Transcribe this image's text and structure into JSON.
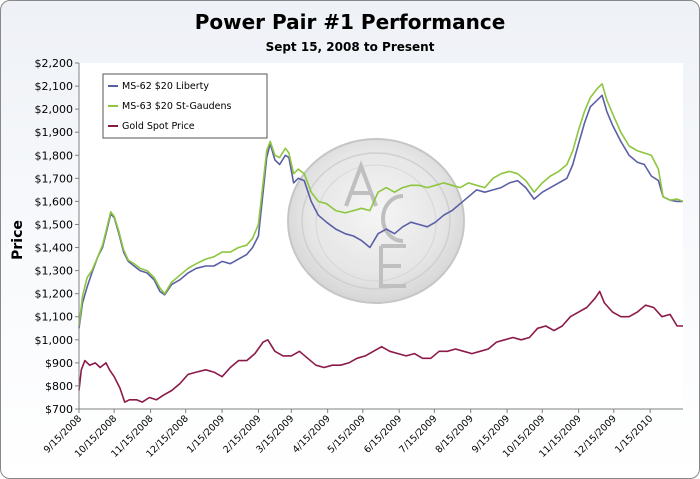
{
  "chart_data": {
    "type": "line",
    "title": "Power Pair #1 Performance",
    "subtitle": "Sept 15, 2008 to Present",
    "ylabel": "Price",
    "xlabel": "",
    "ylim": [
      700,
      2200
    ],
    "y_ticks": [
      "$700",
      "$800",
      "$900",
      "$1,000",
      "$1,100",
      "$1,200",
      "$1,300",
      "$1,400",
      "$1,500",
      "$1,600",
      "$1,700",
      "$1,800",
      "$1,900",
      "$2,000",
      "$2,100",
      "$2,200"
    ],
    "x_ticks": [
      "9/15/2008",
      "10/15/2008",
      "11/15/2008",
      "12/15/2008",
      "1/15/2009",
      "2/15/2009",
      "3/15/2009",
      "4/15/2009",
      "5/15/2009",
      "6/15/2009",
      "7/15/2009",
      "8/15/2009",
      "9/15/2009",
      "10/15/2009",
      "11/15/2009",
      "12/15/2009",
      "1/15/2010"
    ],
    "x_range": [
      "2008-09-15",
      "2010-02-12"
    ],
    "grid": false,
    "legend_position": "top-left",
    "watermark": "ACE coin emblem",
    "series": [
      {
        "name": "MS-62 $20 Liberty",
        "color": "#5b5fa6",
        "points": [
          [
            "2008-09-15",
            1050
          ],
          [
            "2008-09-18",
            1160
          ],
          [
            "2008-09-22",
            1230
          ],
          [
            "2008-09-26",
            1290
          ],
          [
            "2008-10-01",
            1360
          ],
          [
            "2008-10-05",
            1400
          ],
          [
            "2008-10-09",
            1480
          ],
          [
            "2008-10-12",
            1545
          ],
          [
            "2008-10-15",
            1530
          ],
          [
            "2008-10-19",
            1460
          ],
          [
            "2008-10-23",
            1380
          ],
          [
            "2008-10-27",
            1340
          ],
          [
            "2008-11-01",
            1320
          ],
          [
            "2008-11-06",
            1300
          ],
          [
            "2008-11-12",
            1290
          ],
          [
            "2008-11-18",
            1260
          ],
          [
            "2008-11-23",
            1210
          ],
          [
            "2008-11-27",
            1195
          ],
          [
            "2008-12-03",
            1240
          ],
          [
            "2008-12-10",
            1260
          ],
          [
            "2008-12-17",
            1290
          ],
          [
            "2008-12-24",
            1310
          ],
          [
            "2009-01-01",
            1320
          ],
          [
            "2009-01-08",
            1320
          ],
          [
            "2009-01-15",
            1340
          ],
          [
            "2009-01-22",
            1330
          ],
          [
            "2009-01-29",
            1350
          ],
          [
            "2009-02-05",
            1370
          ],
          [
            "2009-02-10",
            1400
          ],
          [
            "2009-02-15",
            1450
          ],
          [
            "2009-02-19",
            1640
          ],
          [
            "2009-02-22",
            1790
          ],
          [
            "2009-02-25",
            1850
          ],
          [
            "2009-03-01",
            1780
          ],
          [
            "2009-03-05",
            1760
          ],
          [
            "2009-03-10",
            1800
          ],
          [
            "2009-03-13",
            1790
          ],
          [
            "2009-03-17",
            1680
          ],
          [
            "2009-03-21",
            1700
          ],
          [
            "2009-03-26",
            1690
          ],
          [
            "2009-04-01",
            1600
          ],
          [
            "2009-04-07",
            1540
          ],
          [
            "2009-04-14",
            1510
          ],
          [
            "2009-04-22",
            1480
          ],
          [
            "2009-04-30",
            1460
          ],
          [
            "2009-05-07",
            1450
          ],
          [
            "2009-05-14",
            1430
          ],
          [
            "2009-05-21",
            1400
          ],
          [
            "2009-05-28",
            1460
          ],
          [
            "2009-06-04",
            1480
          ],
          [
            "2009-06-11",
            1460
          ],
          [
            "2009-06-18",
            1490
          ],
          [
            "2009-06-25",
            1510
          ],
          [
            "2009-07-02",
            1500
          ],
          [
            "2009-07-09",
            1490
          ],
          [
            "2009-07-16",
            1510
          ],
          [
            "2009-07-23",
            1540
          ],
          [
            "2009-07-30",
            1560
          ],
          [
            "2009-08-06",
            1590
          ],
          [
            "2009-08-13",
            1620
          ],
          [
            "2009-08-20",
            1650
          ],
          [
            "2009-08-27",
            1640
          ],
          [
            "2009-09-03",
            1650
          ],
          [
            "2009-09-10",
            1660
          ],
          [
            "2009-09-17",
            1680
          ],
          [
            "2009-09-24",
            1690
          ],
          [
            "2009-10-01",
            1660
          ],
          [
            "2009-10-08",
            1610
          ],
          [
            "2009-10-15",
            1640
          ],
          [
            "2009-10-22",
            1660
          ],
          [
            "2009-10-29",
            1680
          ],
          [
            "2009-11-05",
            1700
          ],
          [
            "2009-11-10",
            1760
          ],
          [
            "2009-11-15",
            1850
          ],
          [
            "2009-11-20",
            1940
          ],
          [
            "2009-11-25",
            2010
          ],
          [
            "2009-12-01",
            2040
          ],
          [
            "2009-12-05",
            2060
          ],
          [
            "2009-12-09",
            1990
          ],
          [
            "2009-12-14",
            1930
          ],
          [
            "2009-12-21",
            1860
          ],
          [
            "2009-12-28",
            1800
          ],
          [
            "2010-01-04",
            1770
          ],
          [
            "2010-01-10",
            1760
          ],
          [
            "2010-01-16",
            1710
          ],
          [
            "2010-01-22",
            1690
          ],
          [
            "2010-01-26",
            1620
          ],
          [
            "2010-02-01",
            1605
          ],
          [
            "2010-02-07",
            1600
          ],
          [
            "2010-02-12",
            1600
          ]
        ]
      },
      {
        "name": "MS-63 $20 St-Gaudens",
        "color": "#8dc63f",
        "points": [
          [
            "2008-09-15",
            1060
          ],
          [
            "2008-09-18",
            1190
          ],
          [
            "2008-09-22",
            1270
          ],
          [
            "2008-09-26",
            1300
          ],
          [
            "2008-10-01",
            1360
          ],
          [
            "2008-10-05",
            1410
          ],
          [
            "2008-10-09",
            1490
          ],
          [
            "2008-10-12",
            1555
          ],
          [
            "2008-10-15",
            1535
          ],
          [
            "2008-10-19",
            1470
          ],
          [
            "2008-10-23",
            1390
          ],
          [
            "2008-10-27",
            1345
          ],
          [
            "2008-11-01",
            1330
          ],
          [
            "2008-11-06",
            1310
          ],
          [
            "2008-11-12",
            1300
          ],
          [
            "2008-11-18",
            1270
          ],
          [
            "2008-11-23",
            1225
          ],
          [
            "2008-11-27",
            1200
          ],
          [
            "2008-12-03",
            1250
          ],
          [
            "2008-12-10",
            1280
          ],
          [
            "2008-12-17",
            1310
          ],
          [
            "2008-12-24",
            1330
          ],
          [
            "2009-01-01",
            1350
          ],
          [
            "2009-01-08",
            1360
          ],
          [
            "2009-01-15",
            1380
          ],
          [
            "2009-01-22",
            1380
          ],
          [
            "2009-01-29",
            1400
          ],
          [
            "2009-02-05",
            1410
          ],
          [
            "2009-02-10",
            1440
          ],
          [
            "2009-02-15",
            1500
          ],
          [
            "2009-02-19",
            1680
          ],
          [
            "2009-02-22",
            1820
          ],
          [
            "2009-02-25",
            1860
          ],
          [
            "2009-03-01",
            1800
          ],
          [
            "2009-03-05",
            1790
          ],
          [
            "2009-03-10",
            1830
          ],
          [
            "2009-03-13",
            1810
          ],
          [
            "2009-03-17",
            1720
          ],
          [
            "2009-03-21",
            1740
          ],
          [
            "2009-03-26",
            1720
          ],
          [
            "2009-04-01",
            1640
          ],
          [
            "2009-04-07",
            1600
          ],
          [
            "2009-04-14",
            1590
          ],
          [
            "2009-04-22",
            1560
          ],
          [
            "2009-04-30",
            1550
          ],
          [
            "2009-05-07",
            1560
          ],
          [
            "2009-05-14",
            1570
          ],
          [
            "2009-05-21",
            1560
          ],
          [
            "2009-05-28",
            1640
          ],
          [
            "2009-06-04",
            1660
          ],
          [
            "2009-06-11",
            1640
          ],
          [
            "2009-06-18",
            1660
          ],
          [
            "2009-06-25",
            1670
          ],
          [
            "2009-07-02",
            1670
          ],
          [
            "2009-07-09",
            1660
          ],
          [
            "2009-07-16",
            1670
          ],
          [
            "2009-07-23",
            1680
          ],
          [
            "2009-07-30",
            1670
          ],
          [
            "2009-08-06",
            1660
          ],
          [
            "2009-08-13",
            1680
          ],
          [
            "2009-08-20",
            1670
          ],
          [
            "2009-08-27",
            1660
          ],
          [
            "2009-09-03",
            1700
          ],
          [
            "2009-09-10",
            1720
          ],
          [
            "2009-09-17",
            1730
          ],
          [
            "2009-09-24",
            1720
          ],
          [
            "2009-10-01",
            1690
          ],
          [
            "2009-10-08",
            1640
          ],
          [
            "2009-10-15",
            1680
          ],
          [
            "2009-10-22",
            1710
          ],
          [
            "2009-10-29",
            1730
          ],
          [
            "2009-11-05",
            1760
          ],
          [
            "2009-11-10",
            1820
          ],
          [
            "2009-11-15",
            1910
          ],
          [
            "2009-11-20",
            1990
          ],
          [
            "2009-11-25",
            2050
          ],
          [
            "2009-12-01",
            2090
          ],
          [
            "2009-12-05",
            2110
          ],
          [
            "2009-12-09",
            2040
          ],
          [
            "2009-12-14",
            1980
          ],
          [
            "2009-12-21",
            1900
          ],
          [
            "2009-12-28",
            1840
          ],
          [
            "2010-01-04",
            1820
          ],
          [
            "2010-01-10",
            1810
          ],
          [
            "2010-01-16",
            1800
          ],
          [
            "2010-01-22",
            1740
          ],
          [
            "2010-01-26",
            1620
          ],
          [
            "2010-02-01",
            1605
          ],
          [
            "2010-02-07",
            1610
          ],
          [
            "2010-02-12",
            1600
          ]
        ]
      },
      {
        "name": "Gold Spot Price",
        "color": "#8b1a4a",
        "points": [
          [
            "2008-09-15",
            780
          ],
          [
            "2008-09-17",
            870
          ],
          [
            "2008-09-20",
            910
          ],
          [
            "2008-09-24",
            890
          ],
          [
            "2008-09-29",
            900
          ],
          [
            "2008-10-03",
            880
          ],
          [
            "2008-10-08",
            900
          ],
          [
            "2008-10-11",
            870
          ],
          [
            "2008-10-15",
            840
          ],
          [
            "2008-10-20",
            790
          ],
          [
            "2008-10-24",
            730
          ],
          [
            "2008-10-28",
            740
          ],
          [
            "2008-11-03",
            740
          ],
          [
            "2008-11-08",
            730
          ],
          [
            "2008-11-14",
            750
          ],
          [
            "2008-11-20",
            740
          ],
          [
            "2008-11-26",
            760
          ],
          [
            "2008-12-03",
            780
          ],
          [
            "2008-12-10",
            810
          ],
          [
            "2008-12-17",
            850
          ],
          [
            "2008-12-24",
            860
          ],
          [
            "2009-01-01",
            870
          ],
          [
            "2009-01-08",
            860
          ],
          [
            "2009-01-15",
            840
          ],
          [
            "2009-01-22",
            880
          ],
          [
            "2009-01-29",
            910
          ],
          [
            "2009-02-05",
            910
          ],
          [
            "2009-02-12",
            940
          ],
          [
            "2009-02-19",
            990
          ],
          [
            "2009-02-23",
            1000
          ],
          [
            "2009-03-01",
            950
          ],
          [
            "2009-03-08",
            930
          ],
          [
            "2009-03-15",
            930
          ],
          [
            "2009-03-22",
            950
          ],
          [
            "2009-03-29",
            920
          ],
          [
            "2009-04-05",
            890
          ],
          [
            "2009-04-12",
            880
          ],
          [
            "2009-04-19",
            890
          ],
          [
            "2009-04-26",
            890
          ],
          [
            "2009-05-03",
            900
          ],
          [
            "2009-05-10",
            920
          ],
          [
            "2009-05-17",
            930
          ],
          [
            "2009-05-24",
            950
          ],
          [
            "2009-05-31",
            970
          ],
          [
            "2009-06-07",
            950
          ],
          [
            "2009-06-14",
            940
          ],
          [
            "2009-06-21",
            930
          ],
          [
            "2009-06-28",
            940
          ],
          [
            "2009-07-05",
            920
          ],
          [
            "2009-07-12",
            920
          ],
          [
            "2009-07-19",
            950
          ],
          [
            "2009-07-26",
            950
          ],
          [
            "2009-08-02",
            960
          ],
          [
            "2009-08-09",
            950
          ],
          [
            "2009-08-16",
            940
          ],
          [
            "2009-08-23",
            950
          ],
          [
            "2009-08-30",
            960
          ],
          [
            "2009-09-06",
            990
          ],
          [
            "2009-09-13",
            1000
          ],
          [
            "2009-09-20",
            1010
          ],
          [
            "2009-09-27",
            1000
          ],
          [
            "2009-10-04",
            1010
          ],
          [
            "2009-10-11",
            1050
          ],
          [
            "2009-10-18",
            1060
          ],
          [
            "2009-10-25",
            1040
          ],
          [
            "2009-11-01",
            1060
          ],
          [
            "2009-11-08",
            1100
          ],
          [
            "2009-11-15",
            1120
          ],
          [
            "2009-11-22",
            1140
          ],
          [
            "2009-11-29",
            1180
          ],
          [
            "2009-12-03",
            1210
          ],
          [
            "2009-12-07",
            1160
          ],
          [
            "2009-12-14",
            1120
          ],
          [
            "2009-12-21",
            1100
          ],
          [
            "2009-12-28",
            1100
          ],
          [
            "2010-01-04",
            1120
          ],
          [
            "2010-01-11",
            1150
          ],
          [
            "2010-01-18",
            1140
          ],
          [
            "2010-01-25",
            1100
          ],
          [
            "2010-02-01",
            1110
          ],
          [
            "2010-02-07",
            1060
          ],
          [
            "2010-02-12",
            1060
          ]
        ]
      }
    ]
  }
}
